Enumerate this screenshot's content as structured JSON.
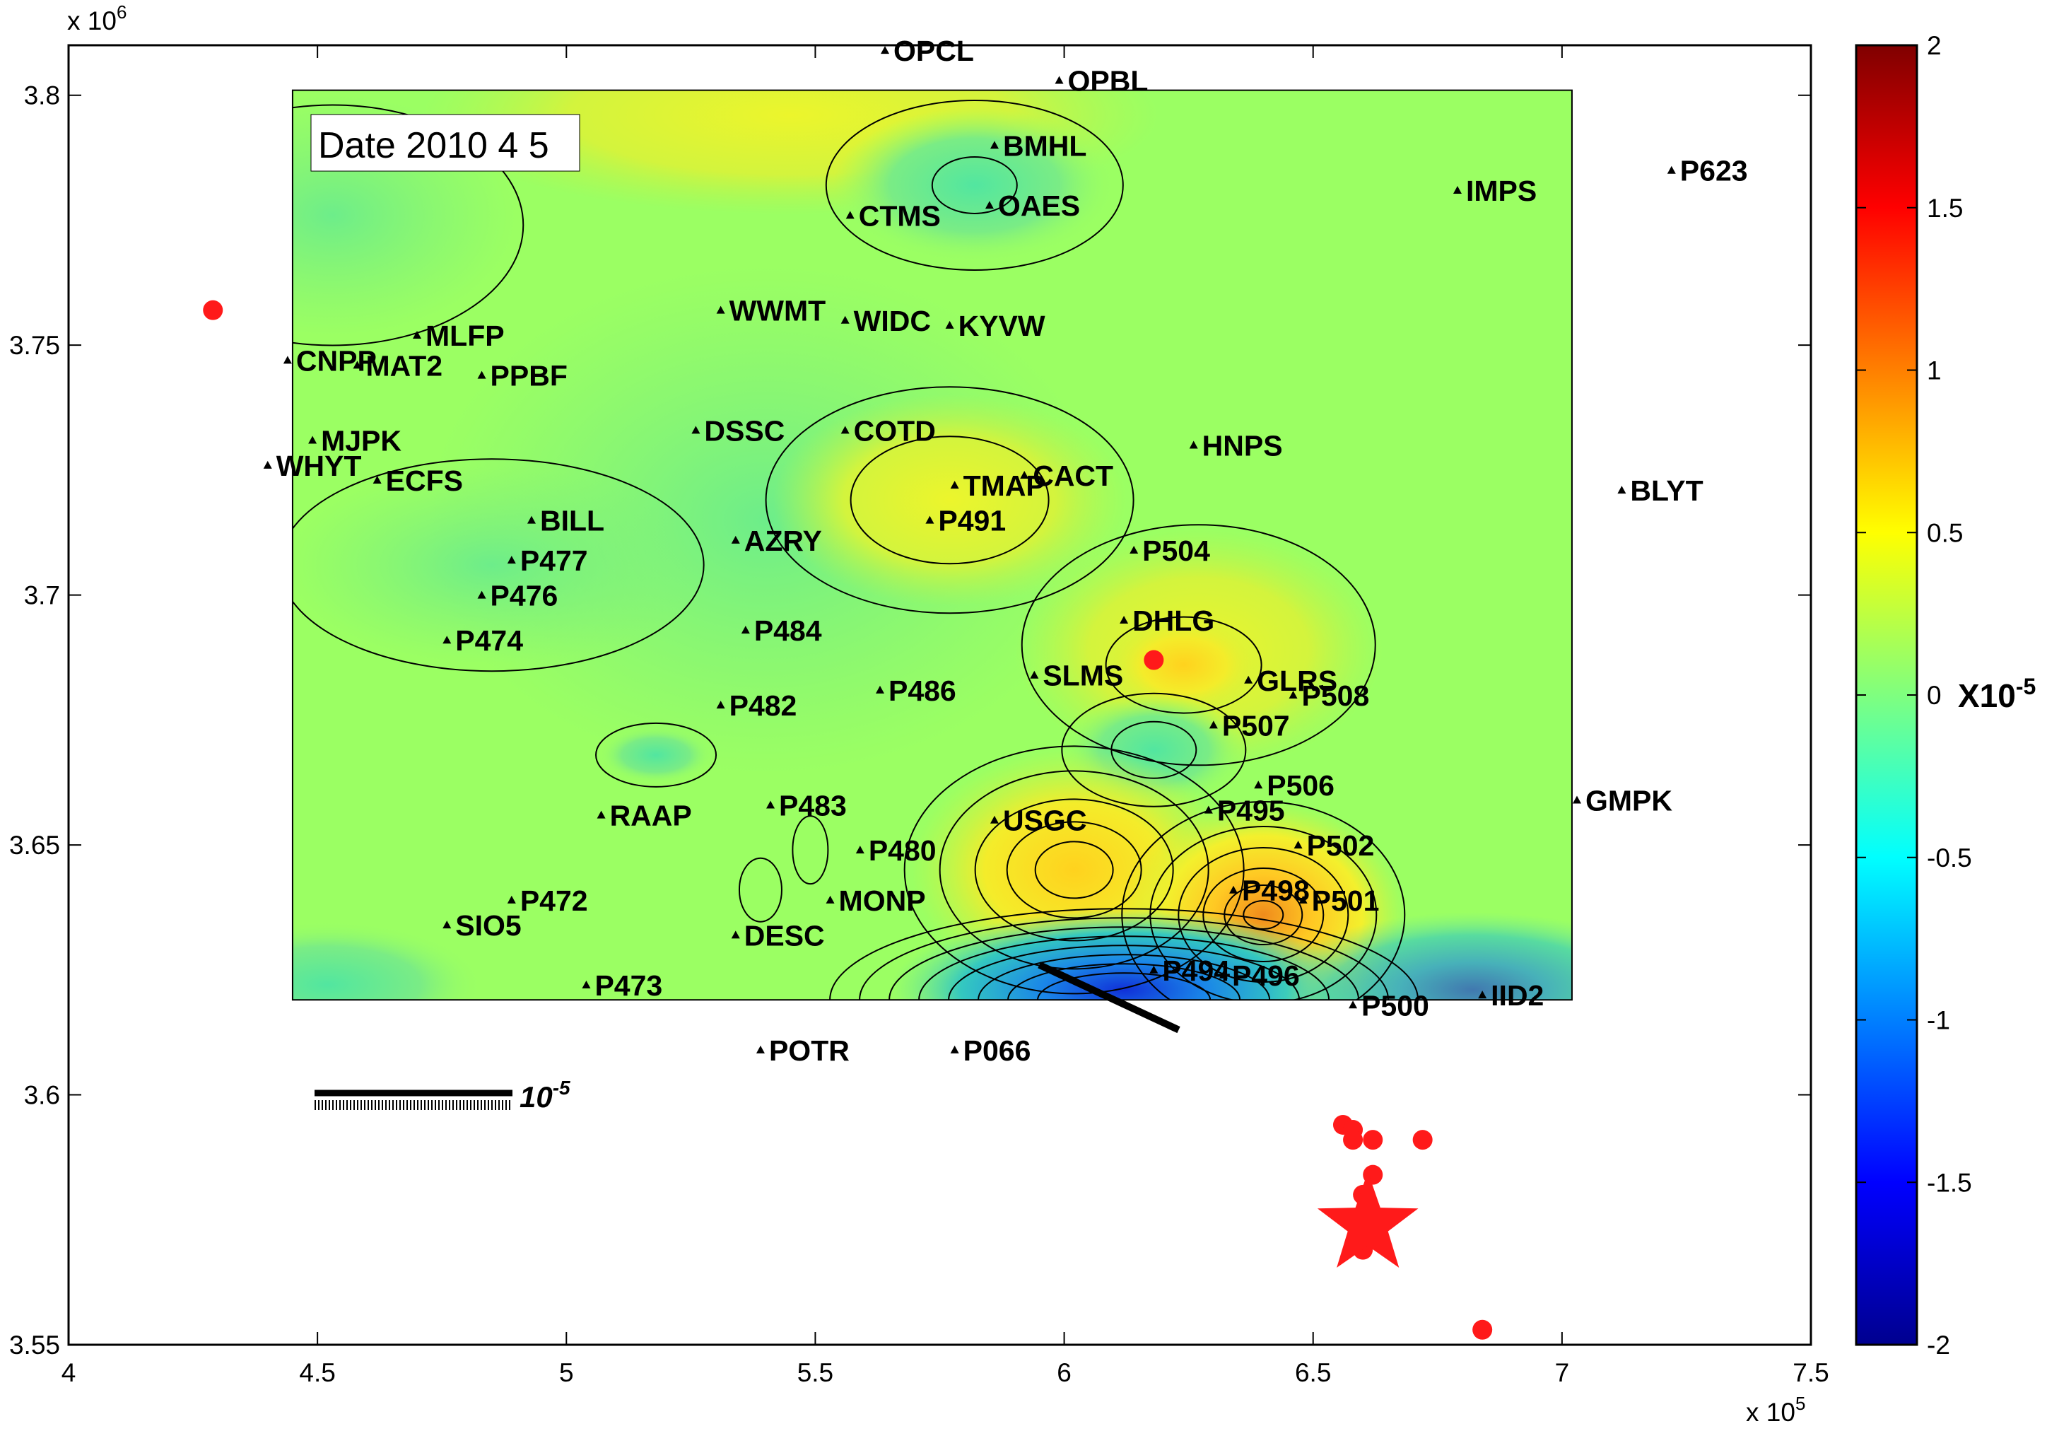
{
  "chart_data": {
    "type": "contour",
    "date_label": "Date 2010 4 5",
    "x_axis": {
      "ticks": [
        4,
        4.5,
        5,
        5.5,
        6,
        6.5,
        7,
        7.5
      ],
      "tick_labels": [
        "4",
        "4.5",
        "5",
        "5.5",
        "6",
        "6.5",
        "7",
        "7.5"
      ],
      "multiplier": "x 10",
      "exponent": "5",
      "xlim": [
        4.0,
        7.5
      ]
    },
    "y_axis": {
      "ticks": [
        3.55,
        3.6,
        3.65,
        3.7,
        3.75,
        3.8
      ],
      "tick_labels": [
        "3.55",
        "3.6",
        "3.65",
        "3.7",
        "3.75",
        "3.8"
      ],
      "multiplier": "x 10",
      "exponent": "6",
      "ylim": [
        3.55,
        3.81
      ]
    },
    "colorbar": {
      "ticks": [
        2,
        1.5,
        1,
        0.5,
        0,
        -0.5,
        -1,
        -1.5,
        -2
      ],
      "tick_labels": [
        "2",
        "1.5",
        "1",
        "0.5",
        "0",
        "-0.5",
        "-1",
        "-1.5",
        "-2"
      ],
      "label_base": "X10",
      "label_exponent": "-5",
      "range": [
        -2,
        2
      ],
      "colormap": "jet"
    },
    "contour_region": {
      "x": [
        4.45,
        7.02
      ],
      "y": [
        3.619,
        3.801
      ]
    },
    "scale_bar": {
      "base": "10",
      "exponent": "-5"
    },
    "stations": [
      {
        "name": "OPCL",
        "x": 5.64,
        "y": 3.809
      },
      {
        "name": "OPBL",
        "x": 5.99,
        "y": 3.803
      },
      {
        "name": "BMHL",
        "x": 5.86,
        "y": 3.79
      },
      {
        "name": "CTMS",
        "x": 5.57,
        "y": 3.776
      },
      {
        "name": "OAES",
        "x": 5.85,
        "y": 3.778
      },
      {
        "name": "IMPS",
        "x": 6.79,
        "y": 3.781
      },
      {
        "name": "P623",
        "x": 7.22,
        "y": 3.785
      },
      {
        "name": "MLFP",
        "x": 4.7,
        "y": 3.752
      },
      {
        "name": "WWMT",
        "x": 5.31,
        "y": 3.757
      },
      {
        "name": "WIDC",
        "x": 5.56,
        "y": 3.755
      },
      {
        "name": "KYVW",
        "x": 5.77,
        "y": 3.754
      },
      {
        "name": "CNPP",
        "x": 4.44,
        "y": 3.747
      },
      {
        "name": "MAT2",
        "x": 4.58,
        "y": 3.746
      },
      {
        "name": "PPBF",
        "x": 4.83,
        "y": 3.744
      },
      {
        "name": "DSSC",
        "x": 5.26,
        "y": 3.733
      },
      {
        "name": "COTD",
        "x": 5.56,
        "y": 3.733
      },
      {
        "name": "MJPK",
        "x": 4.49,
        "y": 3.731
      },
      {
        "name": "HNPS",
        "x": 6.26,
        "y": 3.73
      },
      {
        "name": "WHYT",
        "x": 4.4,
        "y": 3.726
      },
      {
        "name": "ECFS",
        "x": 4.62,
        "y": 3.723
      },
      {
        "name": "CACT",
        "x": 5.92,
        "y": 3.724
      },
      {
        "name": "TMAP",
        "x": 5.78,
        "y": 3.722
      },
      {
        "name": "BLYT",
        "x": 7.12,
        "y": 3.721
      },
      {
        "name": "BILL",
        "x": 4.93,
        "y": 3.715
      },
      {
        "name": "P491",
        "x": 5.73,
        "y": 3.715
      },
      {
        "name": "AZRY",
        "x": 5.34,
        "y": 3.711
      },
      {
        "name": "P504",
        "x": 6.14,
        "y": 3.709
      },
      {
        "name": "P477",
        "x": 4.89,
        "y": 3.707
      },
      {
        "name": "P476",
        "x": 4.83,
        "y": 3.7
      },
      {
        "name": "DHLG",
        "x": 6.12,
        "y": 3.695
      },
      {
        "name": "P484",
        "x": 5.36,
        "y": 3.693
      },
      {
        "name": "P474",
        "x": 4.76,
        "y": 3.691
      },
      {
        "name": "SLMS",
        "x": 5.94,
        "y": 3.684
      },
      {
        "name": "GLRS",
        "x": 6.37,
        "y": 3.683
      },
      {
        "name": "P486",
        "x": 5.63,
        "y": 3.681
      },
      {
        "name": "P508",
        "x": 6.46,
        "y": 3.68
      },
      {
        "name": "P482",
        "x": 5.31,
        "y": 3.678
      },
      {
        "name": "P507",
        "x": 6.3,
        "y": 3.674
      },
      {
        "name": "P506",
        "x": 6.39,
        "y": 3.662
      },
      {
        "name": "GMPK",
        "x": 7.03,
        "y": 3.659
      },
      {
        "name": "P483",
        "x": 5.41,
        "y": 3.658
      },
      {
        "name": "P495",
        "x": 6.29,
        "y": 3.657
      },
      {
        "name": "RAAP",
        "x": 5.07,
        "y": 3.656
      },
      {
        "name": "USGC",
        "x": 5.86,
        "y": 3.655
      },
      {
        "name": "P502",
        "x": 6.47,
        "y": 3.65
      },
      {
        "name": "P480",
        "x": 5.59,
        "y": 3.649
      },
      {
        "name": "P498",
        "x": 6.34,
        "y": 3.641
      },
      {
        "name": "P501",
        "x": 6.48,
        "y": 3.639
      },
      {
        "name": "MONP",
        "x": 5.53,
        "y": 3.639
      },
      {
        "name": "P472",
        "x": 4.89,
        "y": 3.639
      },
      {
        "name": "SIO5",
        "x": 4.76,
        "y": 3.634
      },
      {
        "name": "DESC",
        "x": 5.34,
        "y": 3.632
      },
      {
        "name": "P494",
        "x": 6.18,
        "y": 3.625
      },
      {
        "name": "P496",
        "x": 6.32,
        "y": 3.624
      },
      {
        "name": "P473",
        "x": 5.04,
        "y": 3.622
      },
      {
        "name": "IID2",
        "x": 6.84,
        "y": 3.62
      },
      {
        "name": "P500",
        "x": 6.58,
        "y": 3.618
      },
      {
        "name": "POTR",
        "x": 5.39,
        "y": 3.609
      },
      {
        "name": "P066",
        "x": 5.78,
        "y": 3.609
      }
    ],
    "events": [
      {
        "x": 4.29,
        "y": 3.757
      },
      {
        "x": 6.18,
        "y": 3.687
      },
      {
        "x": 6.56,
        "y": 3.594
      },
      {
        "x": 6.58,
        "y": 3.593
      },
      {
        "x": 6.58,
        "y": 3.591
      },
      {
        "x": 6.62,
        "y": 3.591
      },
      {
        "x": 6.72,
        "y": 3.591
      },
      {
        "x": 6.62,
        "y": 3.584
      },
      {
        "x": 6.6,
        "y": 3.58
      },
      {
        "x": 6.6,
        "y": 3.569
      },
      {
        "x": 6.84,
        "y": 3.553
      }
    ],
    "mainshock": {
      "x": 6.61,
      "y": 3.574
    }
  },
  "colors": {
    "background": "#9bff63",
    "event": "#ff1a1a"
  }
}
